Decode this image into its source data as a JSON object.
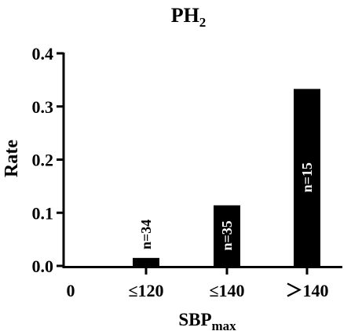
{
  "chart_data": {
    "type": "bar",
    "title": "PH",
    "title_subscript": "2",
    "xlabel": "SBP",
    "xlabel_subscript": "max",
    "ylabel": "Rate",
    "origin_label": "0",
    "categories": [
      "≤120",
      "≤140",
      "＞140"
    ],
    "values": [
      0.015,
      0.114,
      0.333
    ],
    "annotations": [
      "n=34",
      "n=35",
      "n=15"
    ],
    "ylim": [
      0,
      0.4
    ],
    "yticks": [
      "0.0",
      "0.1",
      "0.2",
      "0.3",
      "0.4"
    ],
    "ytick_values": [
      0,
      0.1,
      0.2,
      0.3,
      0.4
    ],
    "grid": false,
    "bar_color": "#000000"
  }
}
